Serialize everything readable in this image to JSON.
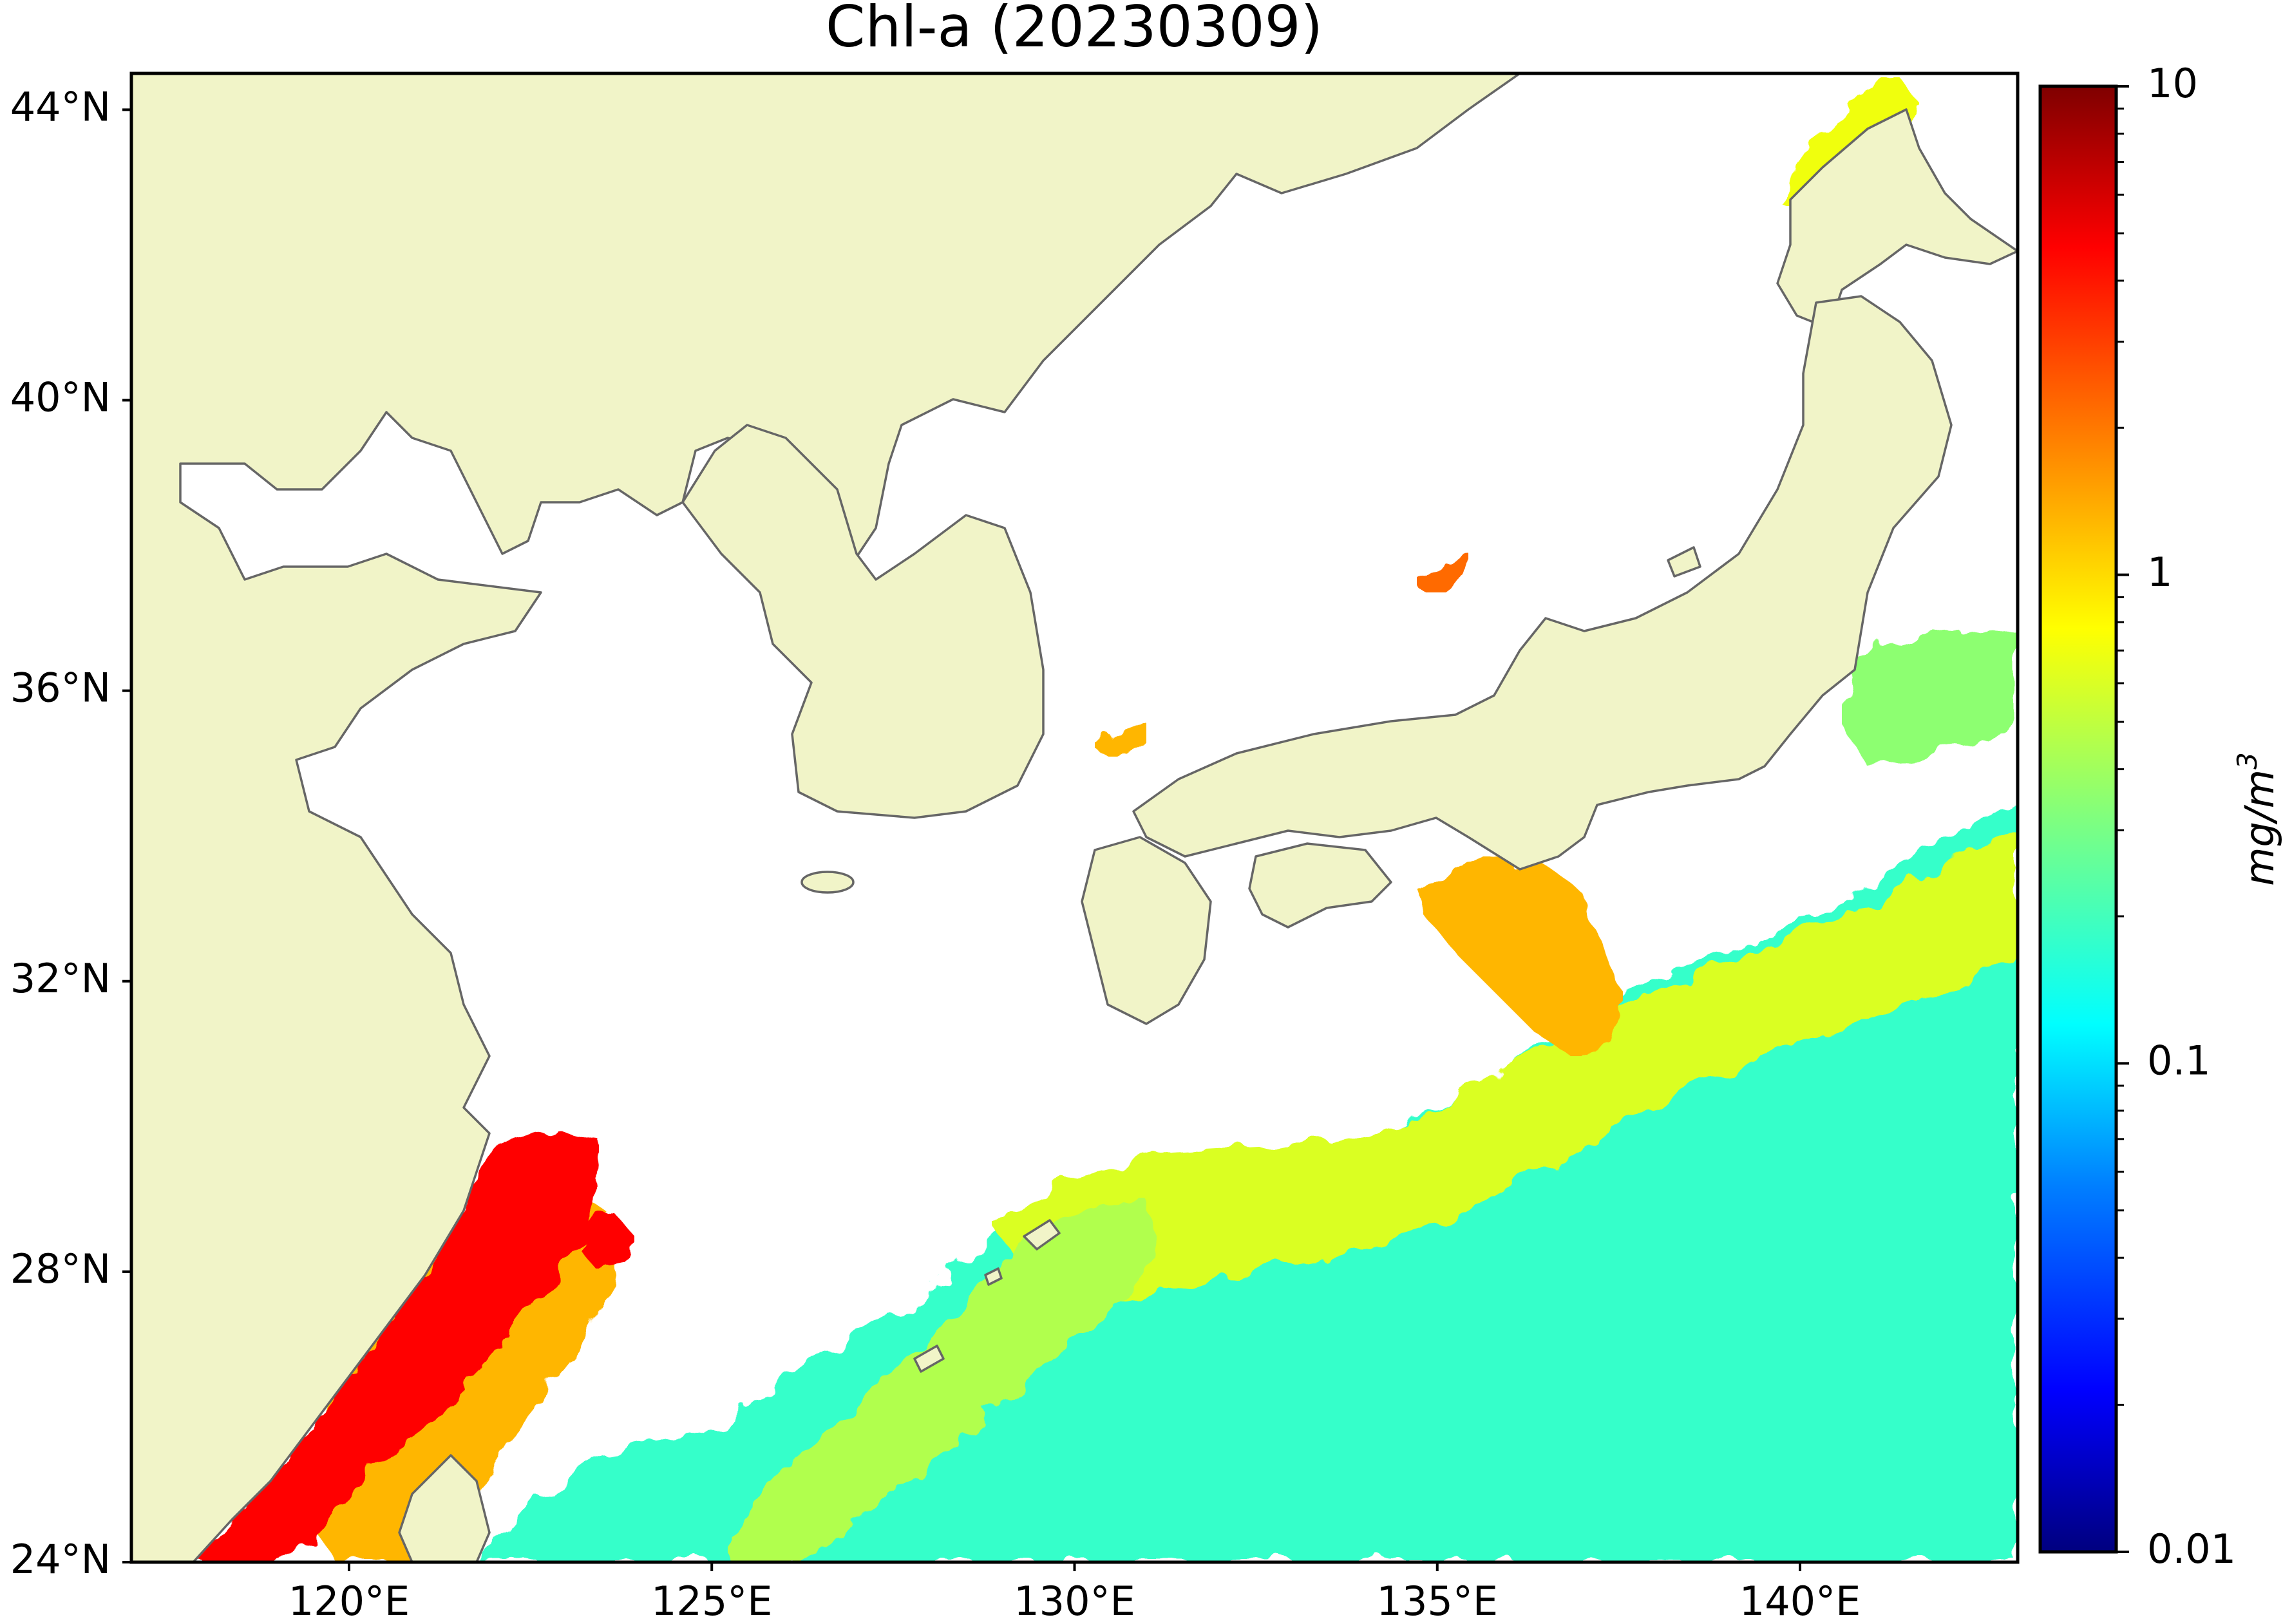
{
  "map": {
    "title": "Chl-a (20230309)",
    "projection": "equirectangular",
    "extent": {
      "lon": [
        117,
        143
      ],
      "lat": [
        24,
        44.5
      ]
    },
    "lon_ticks": [
      {
        "value": 120,
        "label": "120°E"
      },
      {
        "value": 125,
        "label": "125°E"
      },
      {
        "value": 130,
        "label": "130°E"
      },
      {
        "value": 135,
        "label": "135°E"
      },
      {
        "value": 140,
        "label": "140°E"
      }
    ],
    "lat_ticks": [
      {
        "value": 24,
        "label": "24°N"
      },
      {
        "value": 28,
        "label": "28°N"
      },
      {
        "value": 32,
        "label": "32°N"
      },
      {
        "value": 36,
        "label": "36°N"
      },
      {
        "value": 40,
        "label": "40°N"
      },
      {
        "value": 44,
        "label": "44°N"
      }
    ],
    "colors": {
      "land": "#f1f4c8",
      "coastline": "#666666",
      "no_data": "#ffffff"
    },
    "icons": [
      "land-icon",
      "ocean-icon"
    ]
  },
  "colorbar": {
    "label": "mg/m",
    "label_sup": "3",
    "scale": "log",
    "range": [
      0.01,
      10
    ],
    "colormap": "jet",
    "ticks": [
      {
        "value": 10,
        "label": "10"
      },
      {
        "value": 1,
        "label": "1"
      },
      {
        "value": 0.1,
        "label": "0.1"
      },
      {
        "value": 0.01,
        "label": "0.01"
      }
    ],
    "stops": [
      "#00007f",
      "#0000ff",
      "#007fff",
      "#00ffff",
      "#7fff7f",
      "#ffff00",
      "#ff7f00",
      "#ff0000",
      "#7f0000"
    ]
  },
  "chl_patches": [
    {
      "region": "east-china-sea-coastal-bloom",
      "value": 4.5
    },
    {
      "region": "taiwan-strait",
      "value": 1.3
    },
    {
      "region": "ryukyu-waters",
      "value": 0.45
    },
    {
      "region": "western-pacific-subtropical",
      "value": 0.18
    },
    {
      "region": "kuroshio-south-of-honshu",
      "value": 0.6
    },
    {
      "region": "off-kii-peninsula",
      "value": 1.3
    },
    {
      "region": "off-sanriku",
      "value": 0.35
    },
    {
      "region": "sea-of-okhotsk-coast",
      "value": 0.7
    },
    {
      "region": "sea-of-japan-noto",
      "value": 2.2
    }
  ]
}
